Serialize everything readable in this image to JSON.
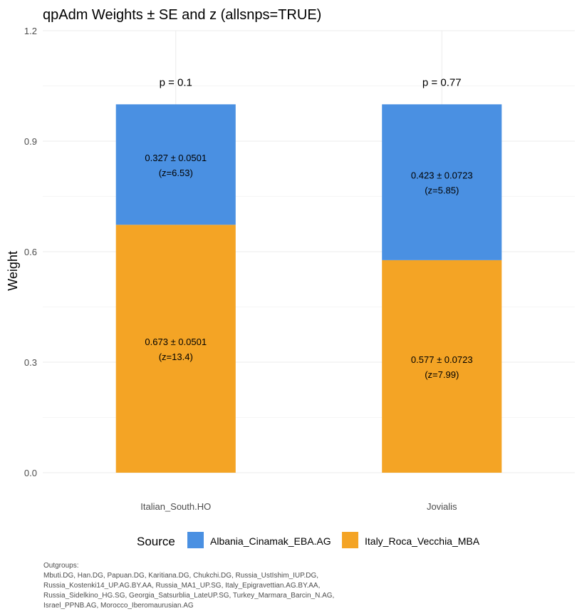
{
  "chart_data": {
    "type": "bar",
    "stacked": true,
    "title": "qpAdm Weights ± SE and z (allsnps=TRUE)",
    "xlabel": "",
    "ylabel": "Weight",
    "ylim": [
      0,
      1.2
    ],
    "yticks": [
      "0.0",
      "0.3",
      "0.6",
      "0.9",
      "1.2"
    ],
    "ytick_values": [
      0,
      0.3,
      0.6,
      0.9,
      1.2
    ],
    "grid": true,
    "legend_position": "bottom",
    "legend_title": "Source",
    "categories": [
      "Italian_South.HO",
      "Jovialis"
    ],
    "p_values": [
      "p = 0.1",
      "p = 0.77"
    ],
    "series": [
      {
        "name": "Italy_Roca_Vecchia_MBA",
        "color": "#F4A425",
        "values": [
          0.673,
          0.577
        ],
        "labels": [
          "0.673 ± 0.0501",
          "0.577 ± 0.0723"
        ],
        "z_labels": [
          "(z=13.4)",
          "(z=7.99)"
        ]
      },
      {
        "name": "Albania_Cinamak_EBA.AG",
        "color": "#4A90E2",
        "values": [
          0.327,
          0.423
        ],
        "labels": [
          "0.327 ± 0.0501",
          "0.423 ± 0.0723"
        ],
        "z_labels": [
          "(z=6.53)",
          "(z=5.85)"
        ]
      }
    ],
    "legend_order": [
      "Albania_Cinamak_EBA.AG",
      "Italy_Roca_Vecchia_MBA"
    ],
    "caption_lines": [
      "Outgroups:",
      " Mbuti.DG, Han.DG, Papuan.DG, Karitiana.DG, Chukchi.DG, Russia_UstIshim_IUP.DG,",
      "Russia_Kostenki14_UP.AG.BY.AA, Russia_MA1_UP.SG, Italy_Epigravettian.AG.BY.AA,",
      "Russia_Sidelkino_HG.SG, Georgia_Satsurblia_LateUP.SG, Turkey_Marmara_Barcin_N.AG,",
      "Israel_PPNB.AG, Morocco_Iberomaurusian.AG"
    ]
  }
}
